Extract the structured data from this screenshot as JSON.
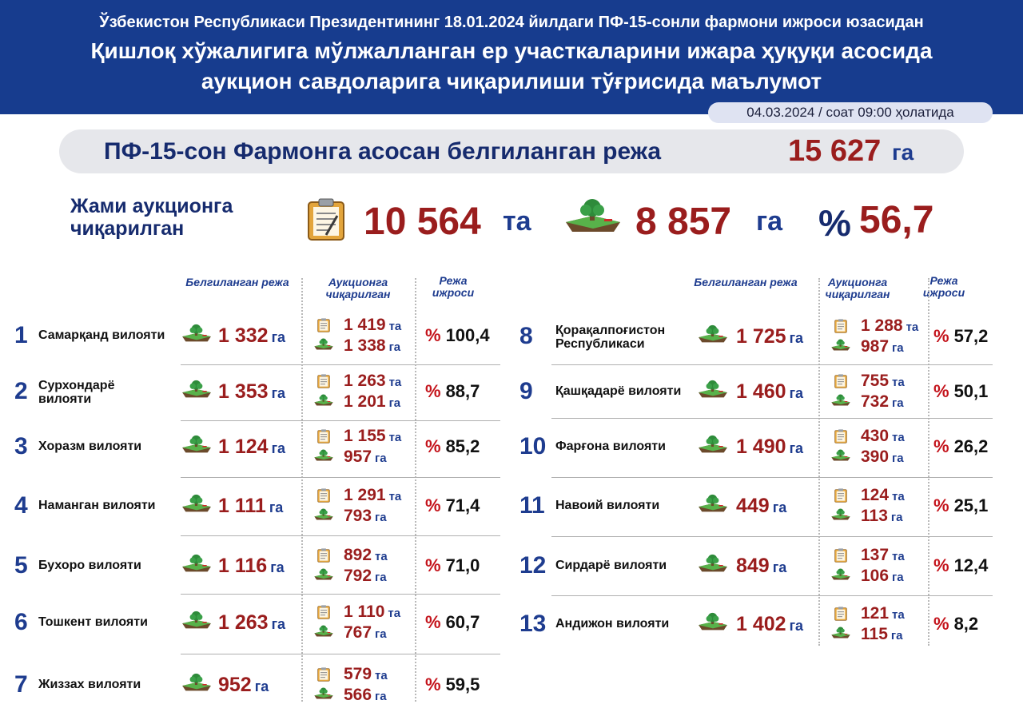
{
  "header": {
    "subtitle": "Ўзбекистон Республикаси Президентининг 18.01.2024 йилдаги ПФ-15-сонли фармони ижроси юзасидан",
    "title_line1": "Қишлоқ хўжалигига мўлжалланган ер участкаларини ижара ҳуқуқи асосида",
    "title_line2": "аукцион савдоларига чиқарилиши тўғрисида маълумот",
    "date": "04.03.2024 / соат 09:00 ҳолатида"
  },
  "plan": {
    "label": "ПФ-15-сон Фармонга асосан белгиланган режа",
    "value": "15 627",
    "unit": "га"
  },
  "totals": {
    "label": "Жами аукционга чиқарилган",
    "count": "10 564",
    "count_unit": "та",
    "area": "8 857",
    "area_unit": "га",
    "percent_sign": "%",
    "percent": "56,7"
  },
  "columns": {
    "plan": "Белгиланган режа",
    "auction": "Аукционга чиқарилган",
    "exec": "Режа ижроси"
  },
  "units": {
    "ga": "га",
    "ta": "та",
    "pct": "%"
  },
  "colors": {
    "header_bg": "#173c8e",
    "value_red": "#9a1d1d",
    "unit_blue": "#1e3c8f",
    "percent_red": "#c4141c"
  },
  "icons": {
    "plan": "land-plot-icon",
    "count": "clipboard-icon",
    "area": "land-plot-icon"
  },
  "regions": [
    {
      "no": "1",
      "name": "Самарқанд вилояти",
      "plan": "1 332",
      "lots": "1 419",
      "area": "1 338",
      "exec": "100,4"
    },
    {
      "no": "2",
      "name": "Сурхондарё вилояти",
      "plan": "1 353",
      "lots": "1 263",
      "area": "1 201",
      "exec": "88,7"
    },
    {
      "no": "3",
      "name": "Хоразм вилояти",
      "plan": "1 124",
      "lots": "1 155",
      "area": "957",
      "exec": "85,2"
    },
    {
      "no": "4",
      "name": "Наманган вилояти",
      "plan": "1 111",
      "lots": "1 291",
      "area": "793",
      "exec": "71,4"
    },
    {
      "no": "5",
      "name": "Бухоро вилояти",
      "plan": "1 116",
      "lots": "892",
      "area": "792",
      "exec": "71,0"
    },
    {
      "no": "6",
      "name": "Тошкент вилояти",
      "plan": "1 263",
      "lots": "1 110",
      "area": "767",
      "exec": "60,7"
    },
    {
      "no": "7",
      "name": "Жиззах вилояти",
      "plan": "952",
      "lots": "579",
      "area": "566",
      "exec": "59,5"
    },
    {
      "no": "8",
      "name": "Қорақалпоғистон Республикаси",
      "plan": "1 725",
      "lots": "1 288",
      "area": "987",
      "exec": "57,2"
    },
    {
      "no": "9",
      "name": "Қашқадарё вилояти",
      "plan": "1 460",
      "lots": "755",
      "area": "732",
      "exec": "50,1"
    },
    {
      "no": "10",
      "name": "Фарғона вилояти",
      "plan": "1 490",
      "lots": "430",
      "area": "390",
      "exec": "26,2"
    },
    {
      "no": "11",
      "name": "Навоий вилояти",
      "plan": "449",
      "lots": "124",
      "area": "113",
      "exec": "25,1"
    },
    {
      "no": "12",
      "name": "Сирдарё вилояти",
      "plan": "849",
      "lots": "137",
      "area": "106",
      "exec": "12,4"
    },
    {
      "no": "13",
      "name": "Андижон вилояти",
      "plan": "1 402",
      "lots": "121",
      "area": "115",
      "exec": "8,2"
    }
  ]
}
